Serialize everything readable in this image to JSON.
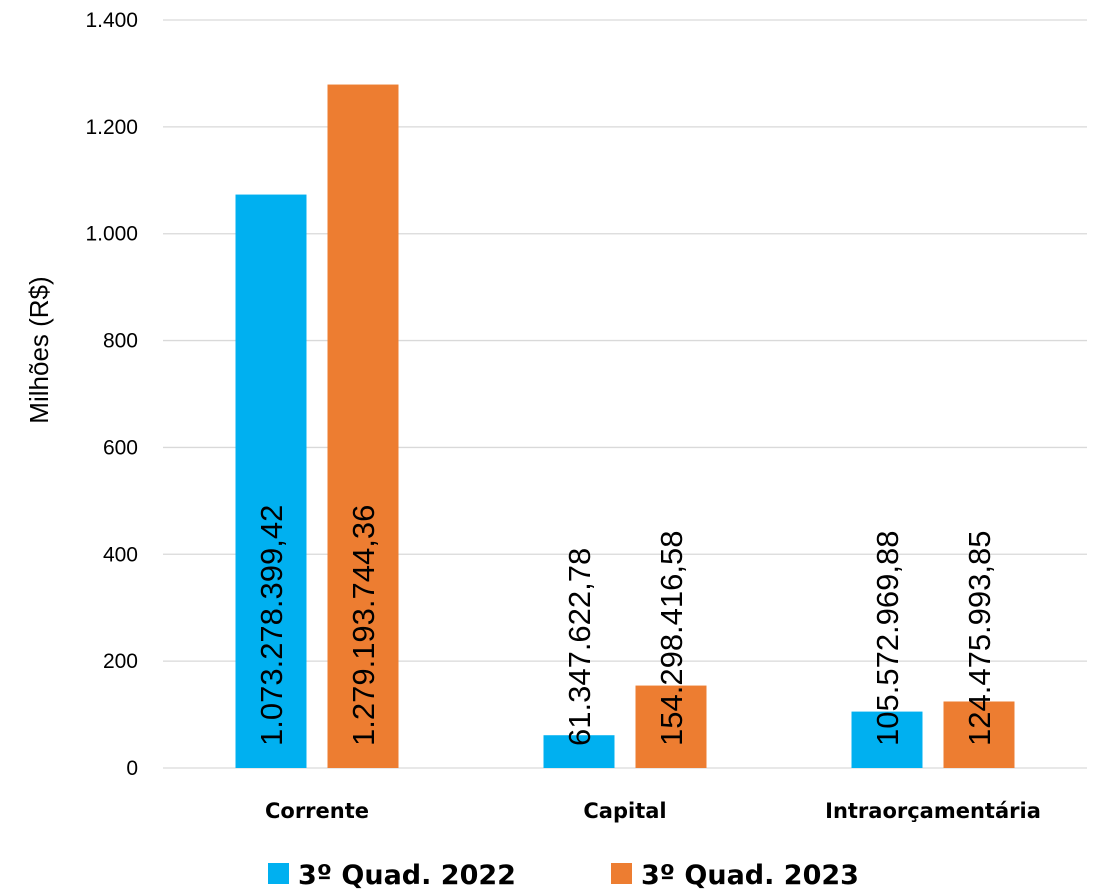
{
  "chart_data": {
    "type": "bar",
    "categories": [
      "Corrente",
      "Capital",
      "Intraorçamentária"
    ],
    "series": [
      {
        "name": "3º Quad. 2022",
        "color": "#00B0F0",
        "values": [
          1073.27839942,
          61.34762278,
          105.57296988
        ],
        "labels": [
          "1.073.278.399,42",
          "61.347.622,78",
          "105.572.969,88"
        ]
      },
      {
        "name": "3º Quad. 2023",
        "color": "#ED7D31",
        "values": [
          1279.19374436,
          154.29841658,
          124.47599385
        ],
        "labels": [
          "1.279.193.744,36",
          "154.298.416,58",
          "124.475.993,85"
        ]
      }
    ],
    "ylabel": "Milhões (R$)",
    "xlabel": "",
    "ylim": [
      0,
      1400
    ],
    "yticks": [
      0,
      200,
      400,
      600,
      800,
      1000,
      1200,
      1400
    ],
    "ytick_labels": [
      "0",
      "200",
      "400",
      "600",
      "800",
      "1.000",
      "1.200",
      "1.400"
    ],
    "grid": true,
    "legend_position": "bottom"
  }
}
